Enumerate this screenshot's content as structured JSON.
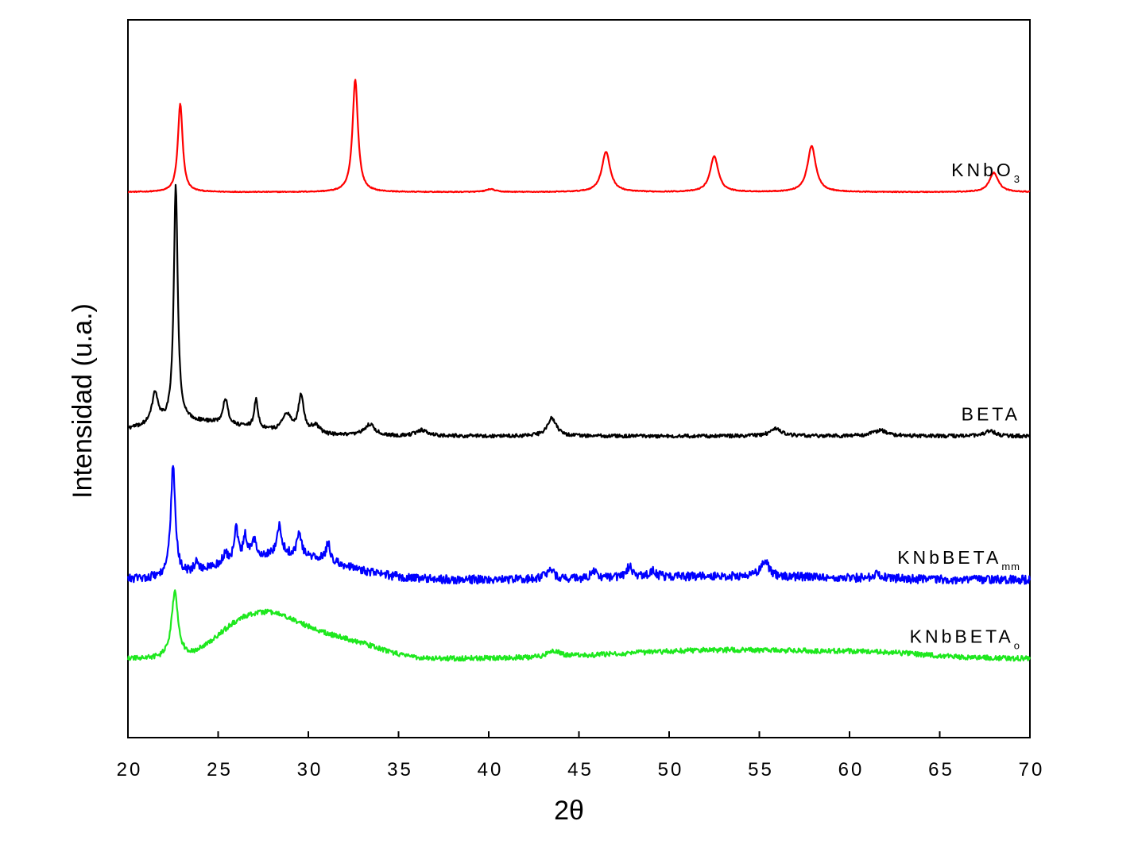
{
  "chart_data": {
    "type": "line",
    "title": "",
    "xlabel": "2θ",
    "ylabel": "Intensidad (u.a.)",
    "xlim": [
      20,
      70
    ],
    "xticks": [
      20,
      25,
      30,
      35,
      40,
      45,
      50,
      55,
      60,
      65,
      70
    ],
    "yticks": [],
    "grid": false,
    "legend": "none (series labelled directly at right end of each trace)",
    "series": [
      {
        "name": "KNbO3",
        "label_main": "KNbO",
        "label_sub": "3",
        "color": "#ff0000",
        "baseline": 0.76,
        "noise": 0.0006,
        "peaks": [
          {
            "x": 22.9,
            "h": 0.123,
            "w": 0.16
          },
          {
            "x": 32.6,
            "h": 0.157,
            "w": 0.18
          },
          {
            "x": 40.1,
            "h": 0.004,
            "w": 0.3
          },
          {
            "x": 46.5,
            "h": 0.056,
            "w": 0.28
          },
          {
            "x": 52.5,
            "h": 0.05,
            "w": 0.27
          },
          {
            "x": 57.9,
            "h": 0.064,
            "w": 0.28
          },
          {
            "x": 68.0,
            "h": 0.027,
            "w": 0.3
          }
        ],
        "humps": []
      },
      {
        "name": "BETA",
        "label_main": "BETA",
        "label_sub": "",
        "color": "#000000",
        "baseline": 0.42,
        "noise": 0.0025,
        "peaks": [
          {
            "x": 21.5,
            "h": 0.043,
            "w": 0.2
          },
          {
            "x": 22.65,
            "h": 0.33,
            "w": 0.13
          },
          {
            "x": 25.4,
            "h": 0.036,
            "w": 0.16
          },
          {
            "x": 27.1,
            "h": 0.04,
            "w": 0.13
          },
          {
            "x": 28.8,
            "h": 0.026,
            "w": 0.3
          },
          {
            "x": 29.6,
            "h": 0.052,
            "w": 0.18
          },
          {
            "x": 30.4,
            "h": 0.012,
            "w": 0.3
          },
          {
            "x": 33.4,
            "h": 0.016,
            "w": 0.35
          },
          {
            "x": 36.3,
            "h": 0.008,
            "w": 0.4
          },
          {
            "x": 43.5,
            "h": 0.025,
            "w": 0.3
          },
          {
            "x": 55.9,
            "h": 0.01,
            "w": 0.4
          },
          {
            "x": 61.7,
            "h": 0.008,
            "w": 0.5
          },
          {
            "x": 67.8,
            "h": 0.008,
            "w": 0.3
          }
        ],
        "humps": [
          {
            "x": 23.5,
            "h": 0.02,
            "w": 3.0
          }
        ]
      },
      {
        "name": "KNbBETAmm",
        "label_main": "KNbBETA",
        "label_sub": "mm",
        "color": "#0000ff",
        "baseline": 0.22,
        "noise": 0.006,
        "peaks": [
          {
            "x": 22.5,
            "h": 0.152,
            "w": 0.15
          },
          {
            "x": 23.8,
            "h": 0.012,
            "w": 0.12
          },
          {
            "x": 25.4,
            "h": 0.012,
            "w": 0.2
          },
          {
            "x": 26.0,
            "h": 0.045,
            "w": 0.12
          },
          {
            "x": 26.5,
            "h": 0.03,
            "w": 0.12
          },
          {
            "x": 27.0,
            "h": 0.022,
            "w": 0.15
          },
          {
            "x": 28.4,
            "h": 0.04,
            "w": 0.15
          },
          {
            "x": 29.5,
            "h": 0.032,
            "w": 0.15
          },
          {
            "x": 31.1,
            "h": 0.025,
            "w": 0.15
          },
          {
            "x": 43.4,
            "h": 0.012,
            "w": 0.3
          },
          {
            "x": 45.8,
            "h": 0.01,
            "w": 0.2
          },
          {
            "x": 47.8,
            "h": 0.016,
            "w": 0.2
          },
          {
            "x": 49.1,
            "h": 0.01,
            "w": 0.2
          },
          {
            "x": 55.3,
            "h": 0.022,
            "w": 0.25
          },
          {
            "x": 61.6,
            "h": 0.006,
            "w": 0.4
          }
        ],
        "humps": [
          {
            "x": 28.5,
            "h": 0.035,
            "w": 3.2
          },
          {
            "x": 53.5,
            "h": 0.005,
            "w": 5.0
          }
        ]
      },
      {
        "name": "KNbBETAo",
        "label_main": "KNbBETA",
        "label_sub": "o",
        "color": "#1ee81e",
        "baseline": 0.11,
        "noise": 0.0035,
        "peaks": [
          {
            "x": 22.6,
            "h": 0.092,
            "w": 0.22
          },
          {
            "x": 43.6,
            "h": 0.008,
            "w": 0.4
          }
        ],
        "humps": [
          {
            "x": 25.6,
            "h": 0.022,
            "w": 1.2
          },
          {
            "x": 27.4,
            "h": 0.03,
            "w": 1.4
          },
          {
            "x": 29.3,
            "h": 0.04,
            "w": 2.2
          },
          {
            "x": 33.0,
            "h": 0.012,
            "w": 1.5
          },
          {
            "x": 53.0,
            "h": 0.012,
            "w": 5.5
          },
          {
            "x": 61.5,
            "h": 0.006,
            "w": 3.0
          }
        ]
      }
    ]
  }
}
